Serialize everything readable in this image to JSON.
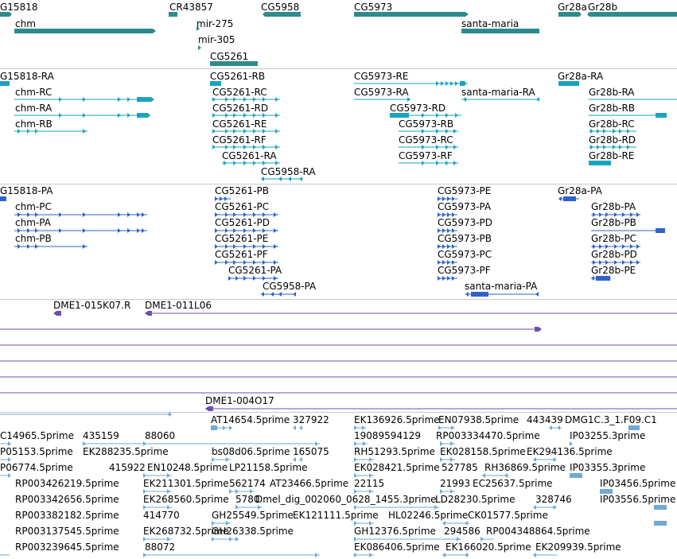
{
  "colors": {
    "gene_teal": "#2e8b8b",
    "transcript_cyan": "#1aa3bf",
    "protein_blue": "#2f63c9",
    "clone_purple": "#6f4fad",
    "est_lightblue": "#6fa9d4",
    "separator": "#c9c9c9"
  },
  "tracks": {
    "genes": {
      "labels": [
        "G15818",
        "CR43857",
        "CG5958",
        "CG5973",
        "Gr28a",
        "Gr28b",
        "chm",
        "mir-275",
        "santa-maria",
        "mir-305",
        "CG5261"
      ]
    },
    "transcripts": {
      "labels": [
        "G15818-RA",
        "CG5261-RB",
        "CG5973-RE",
        "Gr28a-RA",
        "chm-RC",
        "CG5261-RC",
        "CG5973-RA",
        "santa-maria-RA",
        "Gr28b-RA",
        "chm-RA",
        "CG5261-RD",
        "CG5973-RD",
        "Gr28b-RB",
        "chm-RB",
        "CG5261-RE",
        "CG5973-RB",
        "Gr28b-RC",
        "CG5261-RF",
        "CG5973-RC",
        "Gr28b-RD",
        "CG5261-RA",
        "CG5973-RF",
        "Gr28b-RE",
        "CG5958-RA"
      ]
    },
    "proteins": {
      "labels": [
        "G15818-PA",
        "CG5261-PB",
        "CG5973-PE",
        "Gr28a-PA",
        "chm-PC",
        "CG5261-PC",
        "CG5973-PA",
        "Gr28b-PA",
        "chm-PA",
        "CG5261-PD",
        "CG5973-PD",
        "Gr28b-PB",
        "chm-PB",
        "CG5261-PE",
        "CG5973-PB",
        "Gr28b-PC",
        "CG5261-PF",
        "CG5973-PC",
        "Gr28b-PD",
        "CG5261-PA",
        "CG5973-PF",
        "Gr28b-PE",
        "CG5958-PA",
        "santa-maria-PA"
      ]
    },
    "clones": {
      "labels": [
        "DME1-015K07.R",
        "DME1-011L06",
        "DME1-004O17"
      ]
    },
    "ests": {
      "labels": [
        "AT14654.5prime",
        "327922",
        "EK136926.5prime",
        "EN07938.5prime",
        "443439",
        "DMG1C.3_1.F09.C1",
        "C14965.5prime",
        "435159",
        "88060",
        "19089594129",
        "RP003334470.5prime",
        "IP03255.3prime",
        "P05153.5prime",
        "EK288235.5prime",
        "bs08d06.5prime",
        "165075",
        "RH51293.5prime",
        "EK028158.5prime",
        "EK294136.5prime",
        "P06774.5prime",
        "415922",
        "EN10248.5prime",
        "LP21158.5prime",
        "EK028421.5prime",
        "527785",
        "RH36869.5prime",
        "IP03355.3prime",
        "RP003426219.5prime",
        "EK211301.5prime",
        "562174",
        "AT23466.5prime",
        "22115",
        "21993",
        "EC25637.5prime",
        "IP03456.5prime",
        "RP003342656.5prime",
        "EK268560.5prime",
        "5780",
        "Dmel_dig_002060_0628_1455.3prime",
        "LD28230.5prime",
        "328746",
        "IP03556.5prime",
        "RP003382182.5prime",
        "414770",
        "GH25549.5prime",
        "EK121111.5prime",
        "HL02246.5prime",
        "CK01577.5prime",
        "RP003137545.5prime",
        "EK268732.5prime",
        "GH26338.5prime",
        "GH12376.5prime",
        "294586",
        "RP004348864.5prime",
        "RP003239645.5prime",
        "88072",
        "EK086406.5prime",
        "EK166020.5prime",
        "EK209939.5prime"
      ]
    }
  }
}
